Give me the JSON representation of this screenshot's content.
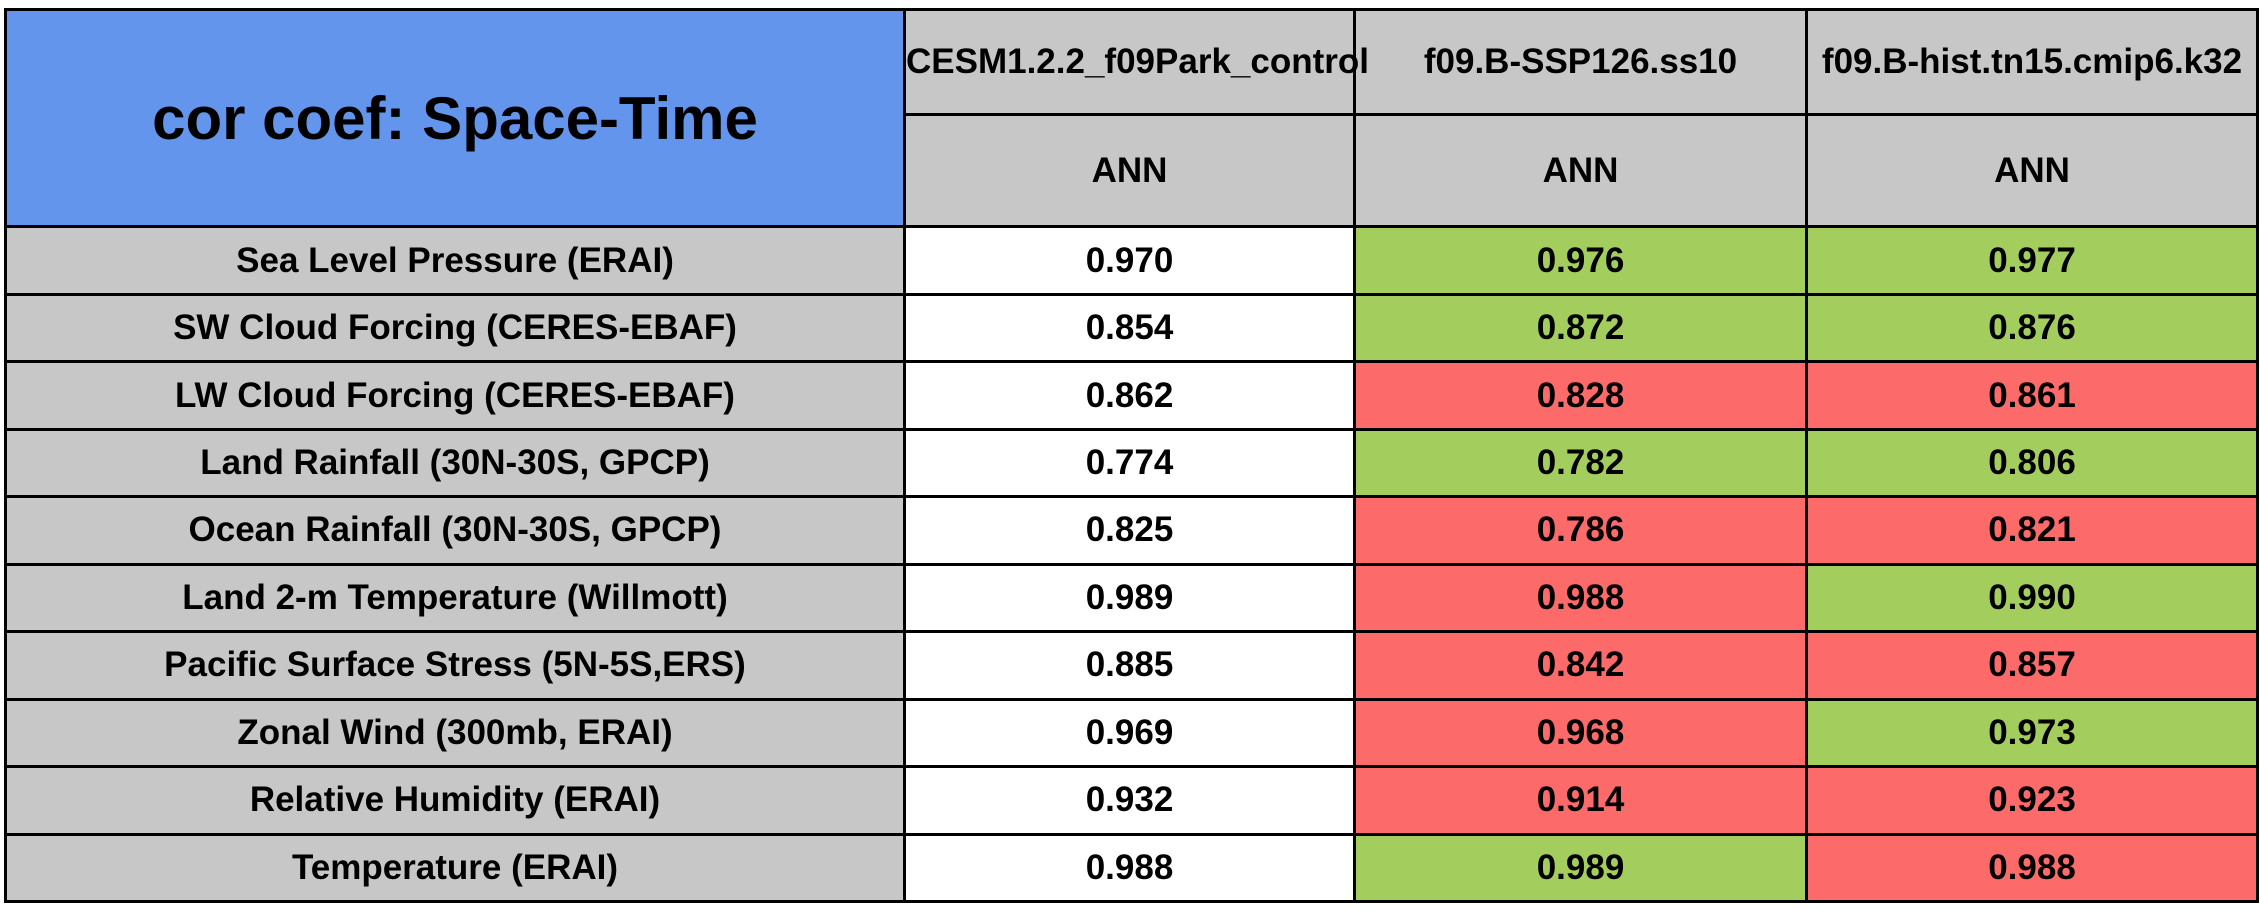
{
  "chart_data": {
    "type": "table",
    "title": "cor coef: Space-Time",
    "column_headers": [
      {
        "model": "CESM1.2.2_f09Park_control",
        "season": "ANN"
      },
      {
        "model": "f09.B-SSP126.ss10",
        "season": "ANN"
      },
      {
        "model": "f09.B-hist.tn15.cmip6.k32",
        "season": "ANN"
      }
    ],
    "rows": [
      {
        "label": "Sea Level Pressure (ERAI)",
        "values": [
          "0.970",
          "0.976",
          "0.977"
        ],
        "cell_colors": [
          "white",
          "green",
          "green"
        ]
      },
      {
        "label": "SW Cloud Forcing (CERES-EBAF)",
        "values": [
          "0.854",
          "0.872",
          "0.876"
        ],
        "cell_colors": [
          "white",
          "green",
          "green"
        ]
      },
      {
        "label": "LW Cloud Forcing (CERES-EBAF)",
        "values": [
          "0.862",
          "0.828",
          "0.861"
        ],
        "cell_colors": [
          "white",
          "red",
          "red"
        ]
      },
      {
        "label": "Land Rainfall (30N-30S, GPCP)",
        "values": [
          "0.774",
          "0.782",
          "0.806"
        ],
        "cell_colors": [
          "white",
          "green",
          "green"
        ]
      },
      {
        "label": "Ocean Rainfall (30N-30S, GPCP)",
        "values": [
          "0.825",
          "0.786",
          "0.821"
        ],
        "cell_colors": [
          "white",
          "red",
          "red"
        ]
      },
      {
        "label": "Land 2-m Temperature (Willmott)",
        "values": [
          "0.989",
          "0.988",
          "0.990"
        ],
        "cell_colors": [
          "white",
          "red",
          "green"
        ]
      },
      {
        "label": "Pacific Surface Stress (5N-5S,ERS)",
        "values": [
          "0.885",
          "0.842",
          "0.857"
        ],
        "cell_colors": [
          "white",
          "red",
          "red"
        ]
      },
      {
        "label": "Zonal Wind (300mb, ERAI)",
        "values": [
          "0.969",
          "0.968",
          "0.973"
        ],
        "cell_colors": [
          "white",
          "red",
          "green"
        ]
      },
      {
        "label": "Relative Humidity (ERAI)",
        "values": [
          "0.932",
          "0.914",
          "0.923"
        ],
        "cell_colors": [
          "white",
          "red",
          "red"
        ]
      },
      {
        "label": "Temperature (ERAI)",
        "values": [
          "0.988",
          "0.989",
          "0.988"
        ],
        "cell_colors": [
          "white",
          "green",
          "red"
        ]
      }
    ],
    "cell_color_palette": {
      "white": "#FFFFFF",
      "green": "#A3CE5E",
      "red": "#FC6A6A"
    },
    "style_colors": {
      "title_cell_background": "#6495EC",
      "header_cell_background": "#C7C7C7",
      "grid_border": "#000000",
      "text": "#000000"
    }
  }
}
